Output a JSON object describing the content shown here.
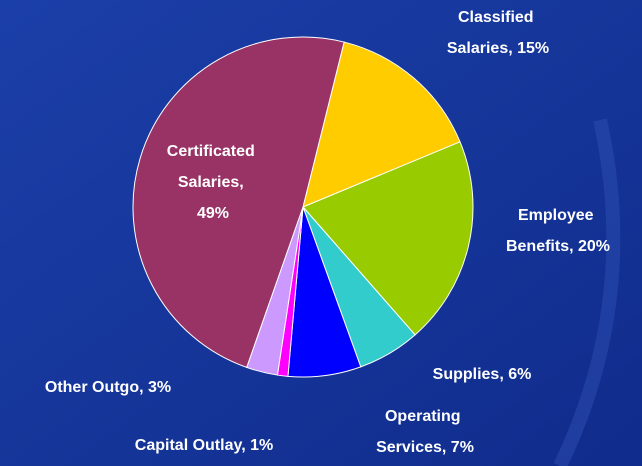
{
  "chart_data": {
    "type": "pie",
    "labels": [
      "Classified Salaries, 15%",
      "Employee Benefits, 20%",
      "Supplies, 6%",
      "Operating Services, 7%",
      "Capital Outlay, 1%",
      "Other Outgo, 3%",
      "Certificated Salaries, 49%"
    ],
    "values": [
      15,
      20,
      6,
      7,
      1,
      3,
      49
    ],
    "colors": [
      "#ffcc00",
      "#99cc00",
      "#33cccc",
      "#0000ff",
      "#ff00ff",
      "#cc99ff",
      "#993366"
    ]
  }
}
